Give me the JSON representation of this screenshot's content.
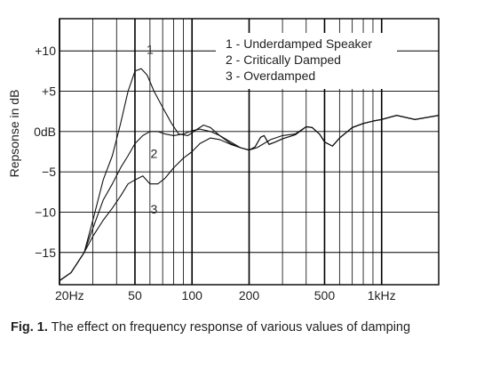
{
  "chart_data": {
    "type": "line",
    "title": "",
    "xlabel": "",
    "ylabel": "Repsonse in dB",
    "x_scale": "log",
    "x_unit": "Hz",
    "xlim": [
      20,
      2000
    ],
    "ylim": [
      -19,
      14
    ],
    "x_ticks": [
      {
        "value": 20,
        "label": "20Hz"
      },
      {
        "value": 50,
        "label": "50"
      },
      {
        "value": 100,
        "label": "100"
      },
      {
        "value": 200,
        "label": "200"
      },
      {
        "value": 500,
        "label": "500"
      },
      {
        "value": 1000,
        "label": "1kHz"
      }
    ],
    "y_ticks": [
      {
        "value": 10,
        "label": "+10"
      },
      {
        "value": 5,
        "label": "+5"
      },
      {
        "value": 0,
        "label": "0dB"
      },
      {
        "value": -5,
        "label": "−5"
      },
      {
        "value": -10,
        "label": "−10"
      },
      {
        "value": -15,
        "label": "−15"
      }
    ],
    "grid": true,
    "legend": {
      "position": "top-right",
      "entries": [
        "1 - Underdamped Speaker",
        "2 - Critically Damped",
        "3 - Overdamped"
      ]
    },
    "series": [
      {
        "name": "1 - Underdamped Speaker",
        "curve_label": "1",
        "points": [
          [
            20,
            -18.5
          ],
          [
            23,
            -17.5
          ],
          [
            27,
            -15
          ],
          [
            30,
            -11
          ],
          [
            34,
            -6
          ],
          [
            38,
            -3
          ],
          [
            42,
            1
          ],
          [
            46,
            5
          ],
          [
            50,
            7.5
          ],
          [
            54,
            7.8
          ],
          [
            58,
            7
          ],
          [
            63,
            5
          ],
          [
            70,
            3
          ],
          [
            78,
            1
          ],
          [
            85,
            -0.3
          ],
          [
            95,
            -0.5
          ],
          [
            105,
            0.2
          ],
          [
            115,
            0.8
          ],
          [
            125,
            0.5
          ],
          [
            140,
            -0.5
          ],
          [
            160,
            -1.5
          ],
          [
            180,
            -2
          ],
          [
            200,
            -2.3
          ],
          [
            220,
            -2
          ],
          [
            260,
            -1
          ],
          [
            300,
            -0.5
          ],
          [
            350,
            -0.3
          ],
          [
            400,
            0.6
          ],
          [
            430,
            0.5
          ],
          [
            470,
            -0.3
          ],
          [
            500,
            -1.3
          ],
          [
            550,
            -1.8
          ],
          [
            600,
            -0.8
          ],
          [
            700,
            0.5
          ],
          [
            800,
            1
          ],
          [
            900,
            1.3
          ],
          [
            1000,
            1.5
          ],
          [
            1200,
            2
          ],
          [
            1500,
            1.5
          ],
          [
            2000,
            2
          ]
        ]
      },
      {
        "name": "2 - Critically Damped",
        "curve_label": "2",
        "points": [
          [
            20,
            -18.5
          ],
          [
            23,
            -17.5
          ],
          [
            27,
            -15
          ],
          [
            30,
            -12
          ],
          [
            34,
            -8.5
          ],
          [
            38,
            -6.5
          ],
          [
            42,
            -4.5
          ],
          [
            46,
            -3
          ],
          [
            50,
            -1.5
          ],
          [
            55,
            -0.5
          ],
          [
            60,
            0
          ],
          [
            66,
            0
          ],
          [
            72,
            -0.3
          ],
          [
            80,
            -0.5
          ],
          [
            90,
            -0.3
          ],
          [
            100,
            0.1
          ],
          [
            110,
            0.3
          ],
          [
            125,
            0
          ],
          [
            140,
            -0.5
          ],
          [
            160,
            -1.3
          ],
          [
            180,
            -2
          ],
          [
            200,
            -2.3
          ],
          [
            215,
            -1.9
          ],
          [
            230,
            -0.7
          ],
          [
            240,
            -0.5
          ],
          [
            255,
            -1.6
          ],
          [
            275,
            -1.3
          ],
          [
            300,
            -0.9
          ],
          [
            350,
            -0.4
          ],
          [
            400,
            0.6
          ],
          [
            430,
            0.5
          ],
          [
            470,
            -0.3
          ],
          [
            500,
            -1.3
          ],
          [
            550,
            -1.8
          ],
          [
            600,
            -0.8
          ],
          [
            700,
            0.5
          ],
          [
            800,
            1
          ],
          [
            900,
            1.3
          ],
          [
            1000,
            1.5
          ],
          [
            1200,
            2
          ],
          [
            1500,
            1.5
          ],
          [
            2000,
            2
          ]
        ]
      },
      {
        "name": "3 - Overdamped",
        "curve_label": "3",
        "points": [
          [
            20,
            -18.5
          ],
          [
            23,
            -17.5
          ],
          [
            27,
            -15
          ],
          [
            30,
            -13
          ],
          [
            34,
            -11
          ],
          [
            38,
            -9.5
          ],
          [
            42,
            -8
          ],
          [
            46,
            -6.5
          ],
          [
            50,
            -6
          ],
          [
            55,
            -5.5
          ],
          [
            60,
            -6.5
          ],
          [
            66,
            -6.5
          ],
          [
            72,
            -5.8
          ],
          [
            80,
            -4.5
          ],
          [
            90,
            -3.3
          ],
          [
            100,
            -2.5
          ],
          [
            110,
            -1.5
          ],
          [
            125,
            -0.8
          ],
          [
            140,
            -1
          ],
          [
            160,
            -1.6
          ],
          [
            180,
            -2
          ],
          [
            200,
            -2.3
          ],
          [
            215,
            -1.9
          ],
          [
            230,
            -0.7
          ],
          [
            240,
            -0.5
          ],
          [
            255,
            -1.6
          ],
          [
            275,
            -1.3
          ],
          [
            300,
            -0.9
          ],
          [
            350,
            -0.4
          ],
          [
            400,
            0.6
          ],
          [
            430,
            0.5
          ],
          [
            470,
            -0.3
          ],
          [
            500,
            -1.3
          ],
          [
            550,
            -1.8
          ],
          [
            600,
            -0.8
          ],
          [
            700,
            0.5
          ],
          [
            800,
            1
          ],
          [
            900,
            1.3
          ],
          [
            1000,
            1.5
          ],
          [
            1200,
            2
          ],
          [
            1500,
            1.5
          ],
          [
            2000,
            2
          ]
        ]
      }
    ]
  },
  "caption": {
    "prefix": "Fig. 1.",
    "text": " The effect on frequency response of various values of damping"
  }
}
